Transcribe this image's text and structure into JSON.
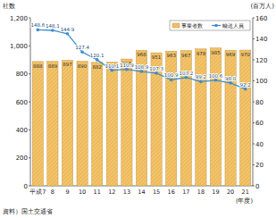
{
  "chart_data": {
    "type": "bar",
    "categories": [
      "平成7",
      "8",
      "9",
      "10",
      "11",
      "12",
      "13",
      "14",
      "15",
      "16",
      "17",
      "18",
      "19",
      "20",
      "21"
    ],
    "series": [
      {
        "name": "事業者数",
        "type": "bar",
        "color": "#f5c46a",
        "values": [
          888,
          889,
          897,
          890,
          882,
          884,
          906,
          968,
          951,
          963,
          967,
          978,
          985,
          969,
          970
        ]
      },
      {
        "name": "輸送人員",
        "type": "line",
        "axis": "y2",
        "color": "#3d8ed0",
        "marker": "circle",
        "values": [
          148.6,
          148.1,
          144.9,
          127.4,
          120.1,
          110.1,
          110.9,
          108.9,
          107.3,
          100.9,
          103.2,
          99.2,
          100.6,
          98.0,
          92.2
        ]
      }
    ],
    "ylim": [
      0,
      1200
    ],
    "yticks": [
      0,
      200,
      400,
      600,
      800,
      {
        "value": 1000,
        "label": "1,000"
      },
      {
        "value": 1200,
        "label": "1,200"
      }
    ],
    "y2lim": [
      0,
      160
    ],
    "y2ticks": [
      0,
      20,
      40,
      60,
      80,
      100,
      120,
      140,
      160
    ],
    "ylabel": "社数",
    "y2label": "(百万人)",
    "xlabel": "(年度)",
    "source": "資料）国土交通省",
    "data_labels": true,
    "legend": "top-right",
    "grid": false
  }
}
